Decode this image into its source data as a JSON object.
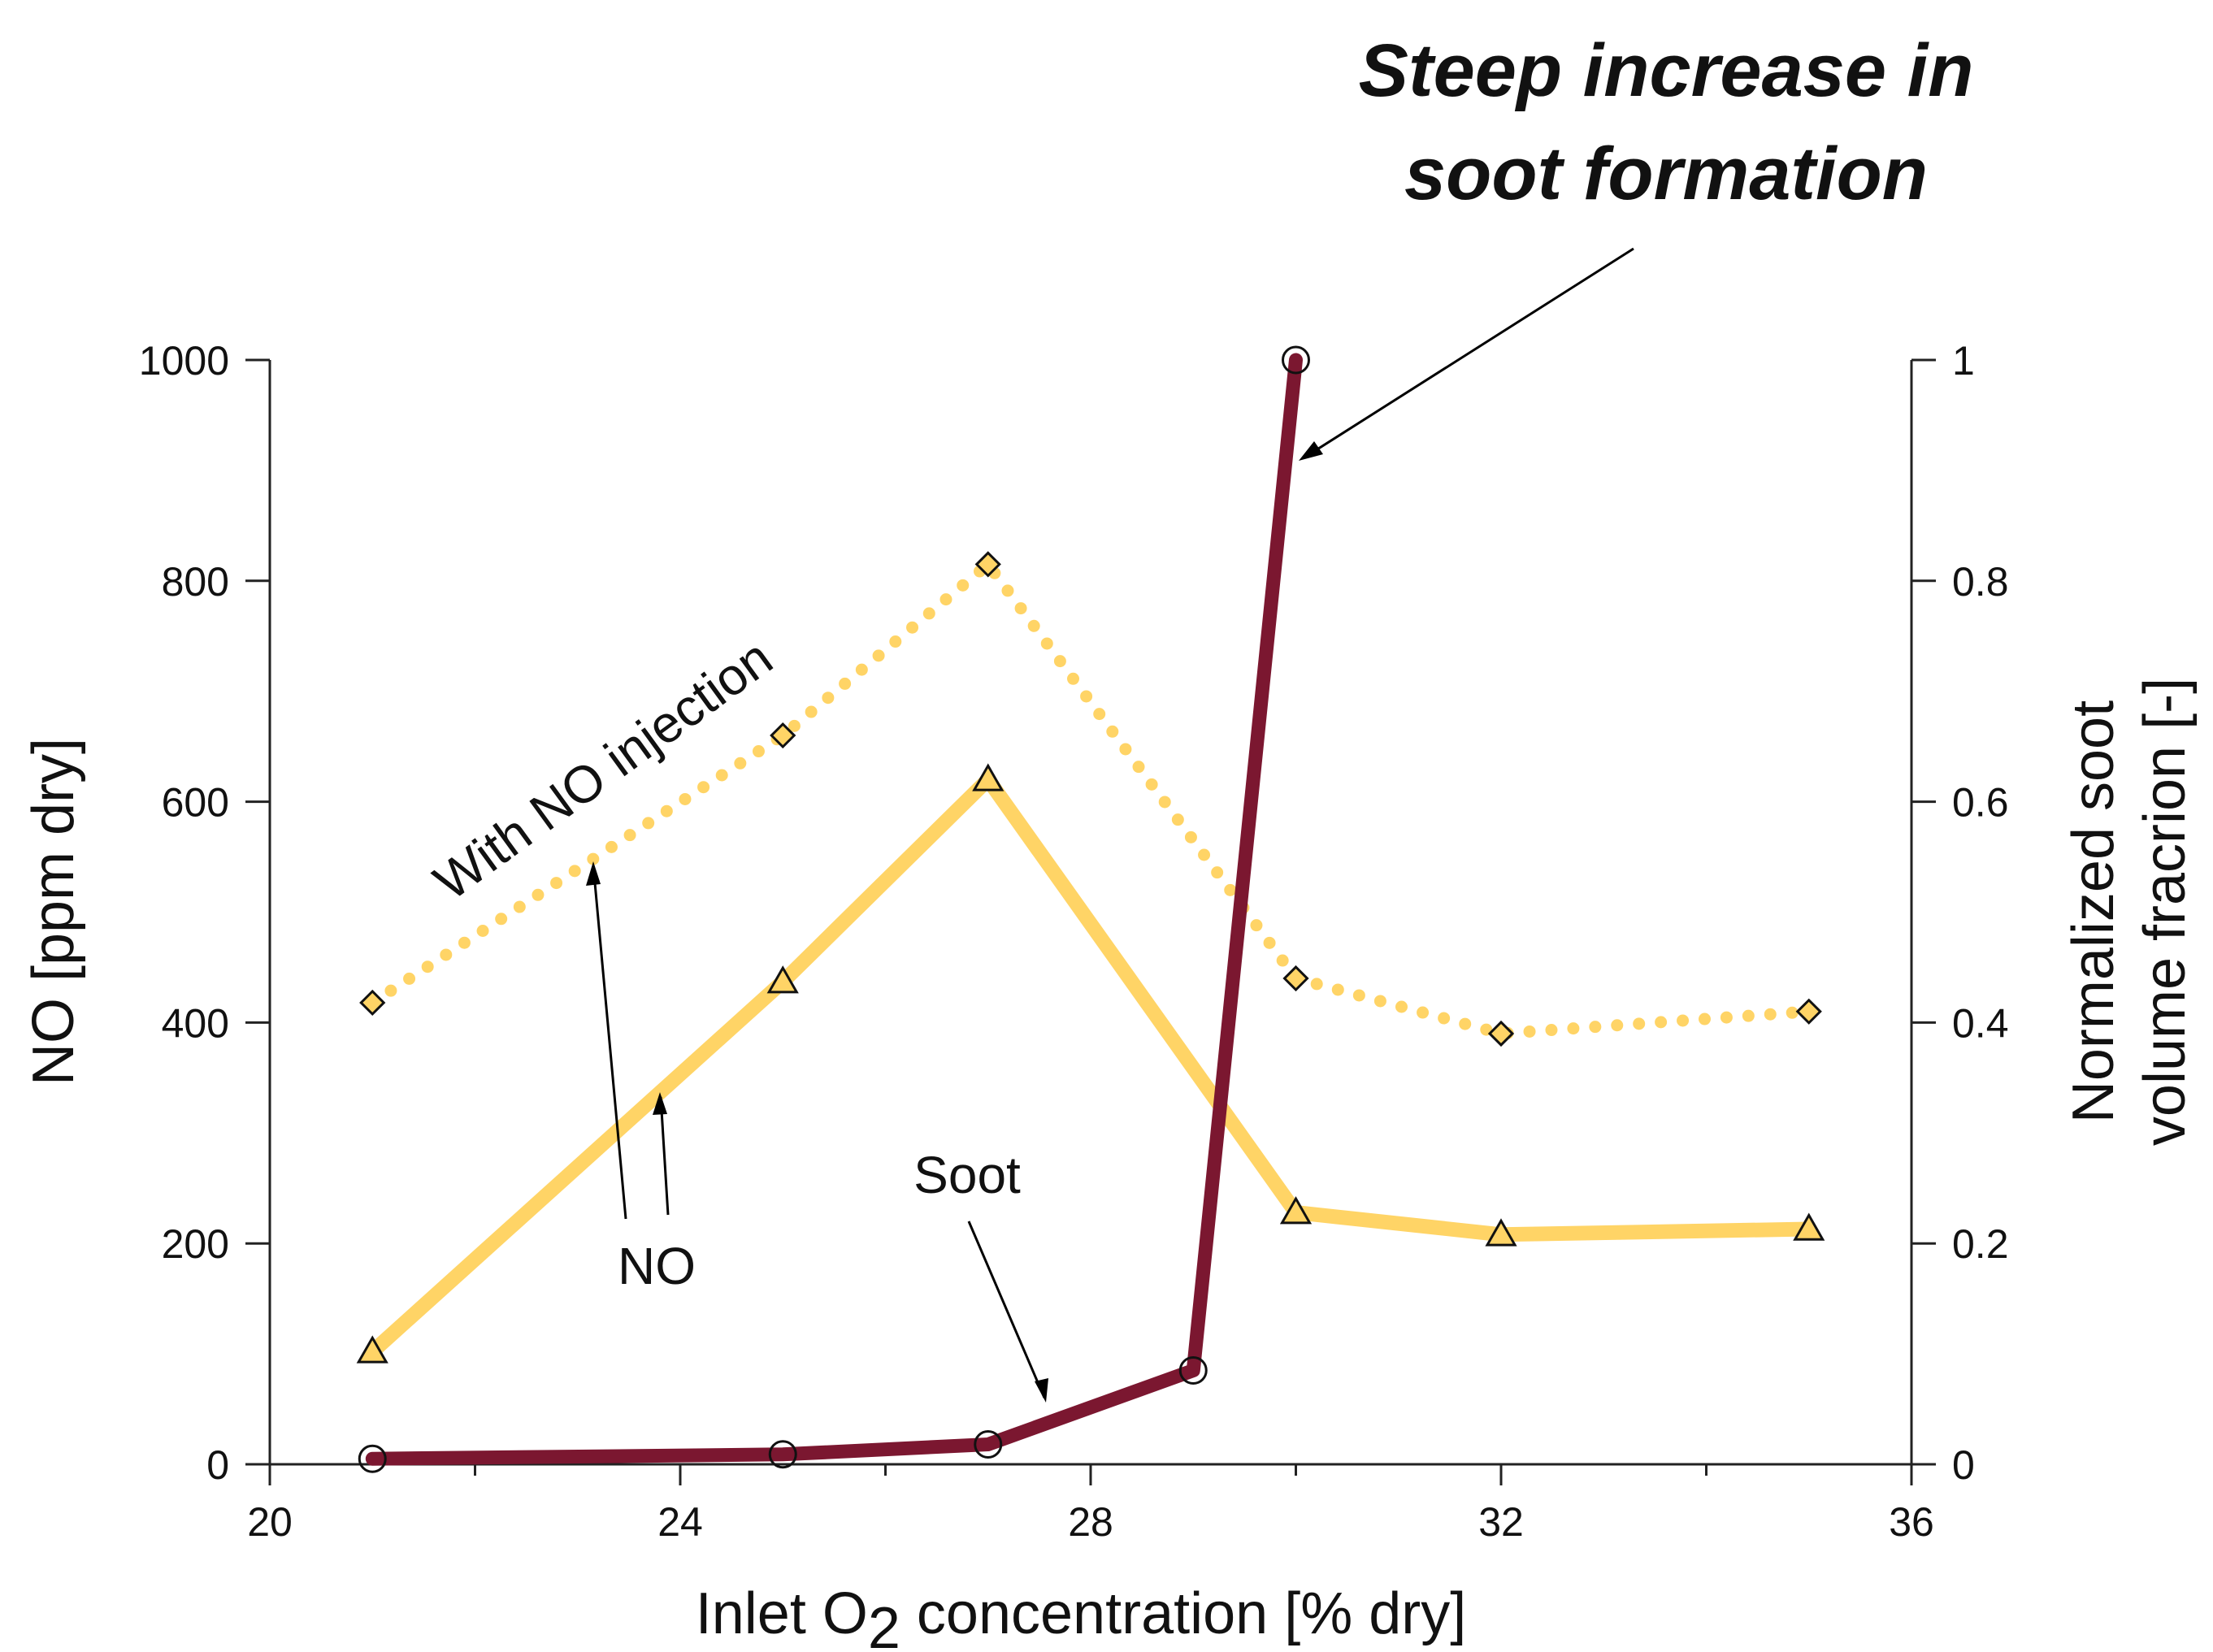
{
  "chart_data": {
    "type": "line",
    "headline": [
      "Steep increase in",
      "soot formation"
    ],
    "x_axis": {
      "label_parts": [
        "Inlet O",
        "2",
        " concentration [% dry]"
      ],
      "range": [
        20,
        36
      ],
      "major_ticks": [
        20,
        24,
        28,
        32,
        36
      ],
      "minor_ticks": [
        22,
        26,
        30,
        34
      ]
    },
    "y_axis_left": {
      "label": "NO [ppm dry]",
      "range": [
        0,
        1000
      ],
      "ticks": [
        0,
        200,
        400,
        600,
        800,
        1000
      ]
    },
    "y_axis_right": {
      "label_lines": [
        "Normalized soot",
        "volume fracrion [-]"
      ],
      "range": [
        0,
        1
      ],
      "ticks": [
        "0",
        "0.2",
        "0.4",
        "0.6",
        "0.8",
        "1"
      ]
    },
    "grid": false,
    "series": [
      {
        "axis": "left",
        "style": "dotted",
        "color": "#FFD466",
        "marker": "diamond",
        "x": [
          21,
          25,
          27,
          30,
          32,
          35
        ],
        "y": [
          418,
          660,
          815,
          440,
          390,
          410
        ]
      },
      {
        "axis": "left",
        "style": "solid",
        "color": "#FFD466",
        "marker": "triangle",
        "x": [
          21,
          25,
          27,
          30,
          32,
          35
        ],
        "y": [
          102,
          437,
          620,
          228,
          208,
          213
        ]
      },
      {
        "axis": "right",
        "style": "solid",
        "color": "#7B1730",
        "marker": "circle",
        "x": [
          21,
          25,
          27,
          29,
          30
        ],
        "y": [
          0.005,
          0.009,
          0.018,
          0.085,
          1.0
        ]
      }
    ],
    "annotations": {
      "with_no_injection": "With NO injection",
      "no": "NO",
      "soot": "Soot"
    }
  }
}
